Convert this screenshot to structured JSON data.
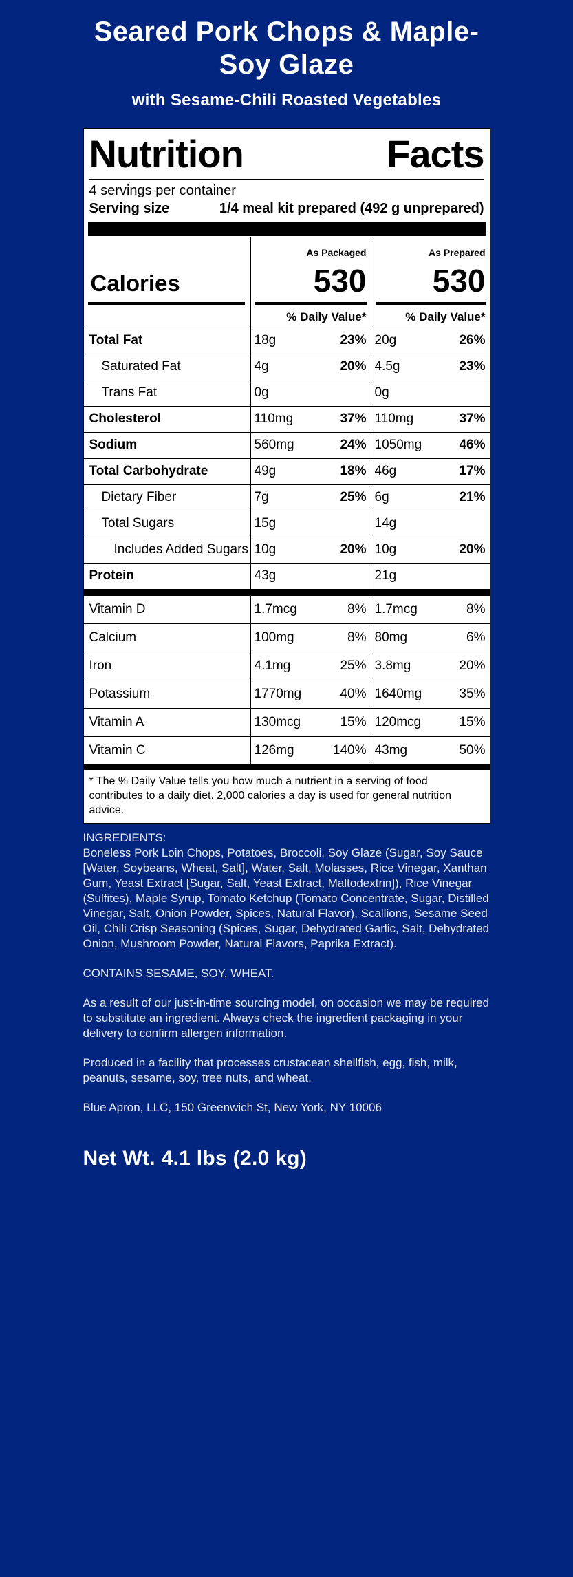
{
  "colors": {
    "background": "#02257f",
    "panel": "#ffffff",
    "panel_text": "#000000",
    "detail_text": "#e7e9f3",
    "title_text": "#ffffff"
  },
  "page": {
    "title": "Seared Pork Chops & Maple-Soy Glaze",
    "subtitle": "with Sesame-Chili Roasted Vegetables",
    "net_weight": "Net Wt. 4.1 lbs (2.0 kg)"
  },
  "nutrition_facts": {
    "heading": "Nutrition Facts",
    "servings_per_container": "4 servings per container",
    "serving_size_label": "Serving size",
    "serving_size_value": "1/4 meal kit prepared (492 g unprepared)",
    "column_headers": [
      "As Packaged",
      "As Prepared"
    ],
    "calories_label": "Calories",
    "calories_as_packaged": "530",
    "calories_as_prepared": "530",
    "daily_value_header_packaged": "% Daily Value*",
    "daily_value_header_prepared": "% Daily Value*",
    "nutrients": [
      {
        "label": "Total Fat",
        "bold": true,
        "indent": 0,
        "amount1": "18g",
        "dv1": "23%",
        "amount2": "20g",
        "dv2": "26%"
      },
      {
        "label": "Saturated Fat",
        "bold": false,
        "indent": 1,
        "amount1": "4g",
        "dv1": "20%",
        "amount2": "4.5g",
        "dv2": "23%"
      },
      {
        "label": "Trans Fat",
        "bold": false,
        "indent": 1,
        "amount1": "0g",
        "dv1": "",
        "amount2": "0g",
        "dv2": ""
      },
      {
        "label": "Cholesterol",
        "bold": true,
        "indent": 0,
        "amount1": "110mg",
        "dv1": "37%",
        "amount2": "110mg",
        "dv2": "37%"
      },
      {
        "label": "Sodium",
        "bold": true,
        "indent": 0,
        "amount1": "560mg",
        "dv1": "24%",
        "amount2": "1050mg",
        "dv2": "46%"
      },
      {
        "label": "Total Carbohydrate",
        "bold": true,
        "indent": 0,
        "amount1": "49g",
        "dv1": "18%",
        "amount2": "46g",
        "dv2": "17%"
      },
      {
        "label": "Dietary Fiber",
        "bold": false,
        "indent": 1,
        "amount1": "7g",
        "dv1": "25%",
        "amount2": "6g",
        "dv2": "21%"
      },
      {
        "label": "Total Sugars",
        "bold": false,
        "indent": 1,
        "amount1": "15g",
        "dv1": "",
        "amount2": "14g",
        "dv2": ""
      },
      {
        "label": "Includes Added Sugars",
        "bold": false,
        "indent": 2,
        "amount1": "10g",
        "dv1": "20%",
        "amount2": "10g",
        "dv2": "20%"
      },
      {
        "label": "Protein",
        "bold": true,
        "indent": 0,
        "amount1": "43g",
        "dv1": "",
        "amount2": "21g",
        "dv2": ""
      }
    ],
    "vitamins": [
      {
        "label": "Vitamin D",
        "amount1": "1.7mcg",
        "dv1": "8%",
        "amount2": "1.7mcg",
        "dv2": "8%"
      },
      {
        "label": "Calcium",
        "amount1": "100mg",
        "dv1": "8%",
        "amount2": "80mg",
        "dv2": "6%"
      },
      {
        "label": "Iron",
        "amount1": "4.1mg",
        "dv1": "25%",
        "amount2": "3.8mg",
        "dv2": "20%"
      },
      {
        "label": "Potassium",
        "amount1": "1770mg",
        "dv1": "40%",
        "amount2": "1640mg",
        "dv2": "35%"
      },
      {
        "label": "Vitamin A",
        "amount1": "130mcg",
        "dv1": "15%",
        "amount2": "120mcg",
        "dv2": "15%"
      },
      {
        "label": "Vitamin C",
        "amount1": "126mg",
        "dv1": "140%",
        "amount2": "43mg",
        "dv2": "50%"
      }
    ],
    "footnote": "* The % Daily Value tells you how much a nutrient in a serving of food contributes to a daily diet. 2,000 calories a day is used for general nutrition advice."
  },
  "details": {
    "ingredients_heading": "INGREDIENTS:",
    "ingredients": "Boneless Pork Loin Chops, Potatoes, Broccoli, Soy Glaze (Sugar, Soy Sauce [Water, Soybeans, Wheat, Salt], Water, Salt, Molasses, Rice Vinegar, Xanthan Gum, Yeast Extract [Sugar, Salt, Yeast Extract, Maltodextrin]), Rice Vinegar (Sulfites), Maple Syrup, Tomato Ketchup (Tomato Concentrate, Sugar, Distilled Vinegar, Salt, Onion Powder, Spices, Natural Flavor), Scallions, Sesame Seed Oil, Chili Crisp Seasoning (Spices, Sugar, Dehydrated Garlic, Salt, Dehydrated Onion, Mushroom Powder, Natural Flavors, Paprika Extract).",
    "contains": "CONTAINS SESAME, SOY, WHEAT.",
    "substitution_note": "As a result of our just-in-time sourcing model, on occasion we may be required to substitute an ingredient. Always check the ingredient packaging in your delivery to confirm allergen information.",
    "facility_note": "Produced in a facility that processes crustacean shellfish, egg, fish, milk, peanuts, sesame, soy, tree nuts, and wheat.",
    "company": "Blue Apron, LLC, 150 Greenwich St, New York, NY 10006"
  }
}
